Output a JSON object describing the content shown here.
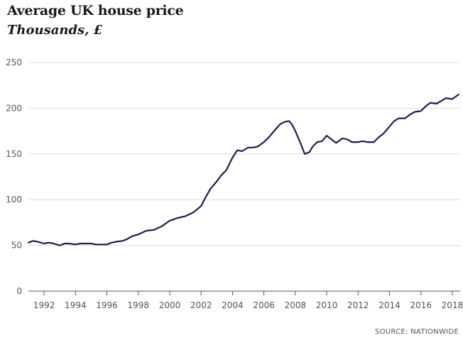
{
  "title": "Average UK house price",
  "subtitle": "Thousands, £",
  "source": "SOURCE: NATIONWIDE",
  "colors": {
    "line": "#2d1552",
    "grid": "#dddddd",
    "axis": "#555555"
  },
  "chart_data": {
    "type": "line",
    "title": "Average UK house price",
    "subtitle": "Thousands, £",
    "xlabel": "",
    "ylabel": "",
    "xlim": [
      1991.0,
      2018.5
    ],
    "ylim": [
      0,
      250
    ],
    "grid": true,
    "y_ticks": [
      0,
      50,
      100,
      150,
      200,
      250
    ],
    "x_ticks": [
      1992,
      1994,
      1996,
      1998,
      2000,
      2002,
      2004,
      2006,
      2008,
      2010,
      2012,
      2014,
      2016,
      2018
    ],
    "series": [
      {
        "x": [
          1991.0,
          1991.3,
          1991.6,
          1992.0,
          1992.3,
          1992.6,
          1993.0,
          1993.3,
          1993.6,
          1994.0,
          1994.3,
          1994.6,
          1995.0,
          1995.3,
          1995.6,
          1996.0,
          1996.3,
          1996.6,
          1997.0,
          1997.3,
          1997.6,
          1998.0,
          1998.5,
          1999.0,
          1999.5,
          2000.0,
          2000.5,
          2001.0,
          2001.5,
          2002.0,
          2002.3,
          2002.6,
          2003.0,
          2003.3,
          2003.6,
          2004.0,
          2004.3,
          2004.6,
          2005.0,
          2005.3,
          2005.6,
          2006.0,
          2006.3,
          2006.6,
          2007.0,
          2007.3,
          2007.6,
          2007.8,
          2008.0,
          2008.3,
          2008.6,
          2008.9,
          2009.1,
          2009.4,
          2009.7,
          2010.0,
          2010.3,
          2010.6,
          2011.0,
          2011.3,
          2011.6,
          2012.0,
          2012.3,
          2012.6,
          2013.0,
          2013.3,
          2013.6,
          2014.0,
          2014.3,
          2014.6,
          2015.0,
          2015.3,
          2015.6,
          2016.0,
          2016.3,
          2016.6,
          2017.0,
          2017.3,
          2017.6,
          2018.0,
          2018.4
        ],
        "y": [
          53,
          55,
          54,
          52,
          53,
          52,
          50,
          52,
          52,
          51,
          52,
          52,
          52,
          51,
          51,
          51,
          53,
          54,
          55,
          57,
          60,
          62,
          66,
          67,
          71,
          77,
          80,
          82,
          86,
          93,
          103,
          112,
          120,
          127,
          132,
          146,
          154,
          153,
          157,
          157,
          158,
          163,
          168,
          174,
          182,
          185,
          186,
          182,
          175,
          163,
          150,
          152,
          158,
          163,
          164,
          170,
          166,
          162,
          167,
          166,
          163,
          163,
          164,
          163,
          163,
          168,
          172,
          180,
          186,
          189,
          189,
          193,
          196,
          197,
          202,
          206,
          205,
          208,
          211,
          210,
          215
        ]
      }
    ]
  }
}
